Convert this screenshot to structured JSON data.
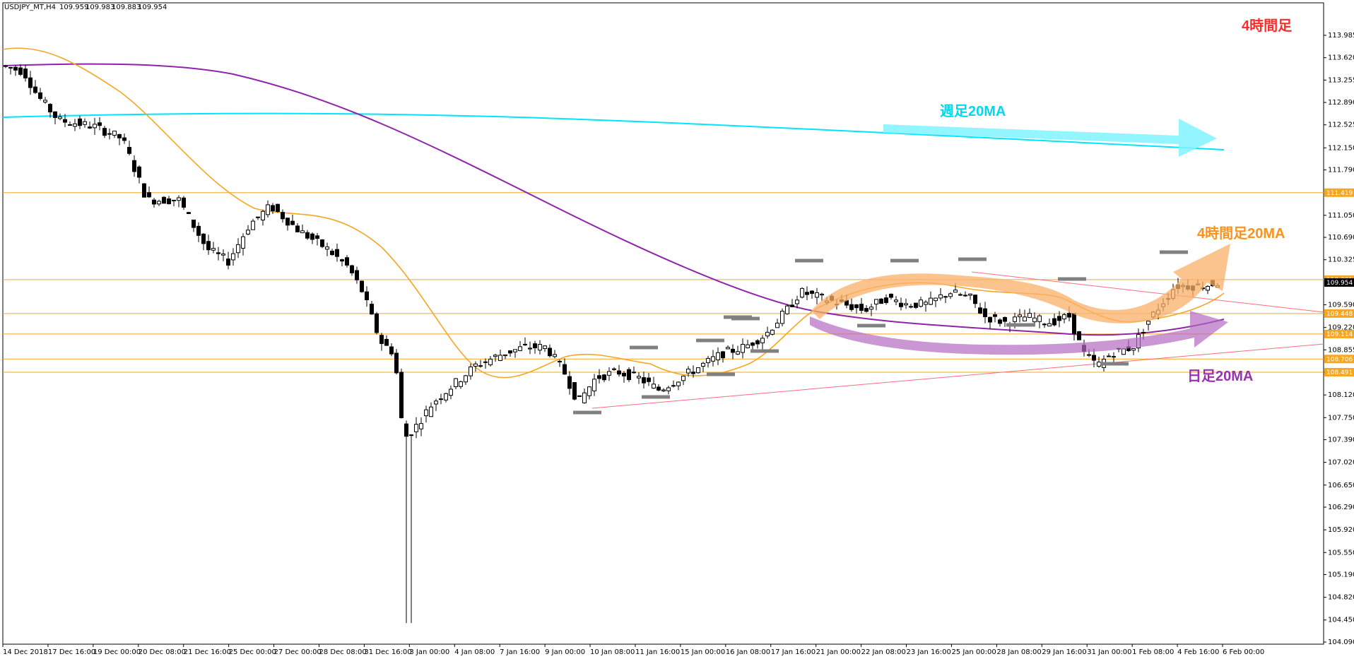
{
  "header": {
    "symbol": "USDJPY_MT,H4",
    "open": "109.959",
    "high": "109.983",
    "low": "109.883",
    "close": "109.954"
  },
  "chart_data": {
    "type": "candlestick",
    "timeframe_label": "4時間足",
    "ylim": [
      104.09,
      113.96
    ],
    "y_ticks": [
      "113.985",
      "113.620",
      "113.255",
      "112.890",
      "112.525",
      "112.150",
      "111.790",
      "111.050",
      "110.690",
      "110.325",
      "109.590",
      "109.220",
      "108.855",
      "108.490",
      "108.120",
      "107.750",
      "107.390",
      "107.020",
      "106.650",
      "106.290",
      "105.920",
      "105.550",
      "105.190",
      "104.820",
      "104.450",
      "104.090"
    ],
    "x_ticks": [
      "14 Dec 2018",
      "17 Dec 16:00",
      "19 Dec 00:00",
      "20 Dec 08:00",
      "21 Dec 16:00",
      "25 Dec 00:00",
      "27 Dec 00:00",
      "28 Dec 08:00",
      "31 Dec 16:00",
      "3 Jan 00:00",
      "4 Jan 08:00",
      "7 Jan 16:00",
      "9 Jan 00:00",
      "10 Jan 08:00",
      "11 Jan 16:00",
      "15 Jan 00:00",
      "16 Jan 08:00",
      "17 Jan 16:00",
      "21 Jan 00:00",
      "22 Jan 08:00",
      "23 Jan 16:00",
      "25 Jan 00:00",
      "28 Jan 08:00",
      "29 Jan 16:00",
      "31 Jan 00:00",
      "1 Feb 08:00",
      "4 Feb 16:00",
      "6 Feb 00:00"
    ],
    "levels": [
      {
        "value": 111.419,
        "label": "111.419"
      },
      {
        "value": 110.001,
        "label": "110.001"
      },
      {
        "value": 109.448,
        "label": "109.448"
      },
      {
        "value": 109.114,
        "label": "109.114"
      },
      {
        "value": 108.706,
        "label": "108.706"
      },
      {
        "value": 108.491,
        "label": "108.491"
      }
    ],
    "price_marker": {
      "value": 109.954,
      "label": "109.954"
    },
    "annotations": {
      "weekly_ma": "週足20MA",
      "h4_ma": "4時間足20MA",
      "daily_ma": "日足20MA"
    },
    "colors": {
      "up": "#ffffff",
      "down": "#000000",
      "ma_h4": "#f5a623",
      "ma_daily": "#8e24aa",
      "ma_weekly": "#00e5ff",
      "level": "#f5a623",
      "trend": "#ff6b81",
      "label_weekly": "#00d8f0",
      "label_h4": "#f7931e",
      "label_daily": "#9b30b0",
      "label_tf": "#ff2a2a"
    }
  }
}
